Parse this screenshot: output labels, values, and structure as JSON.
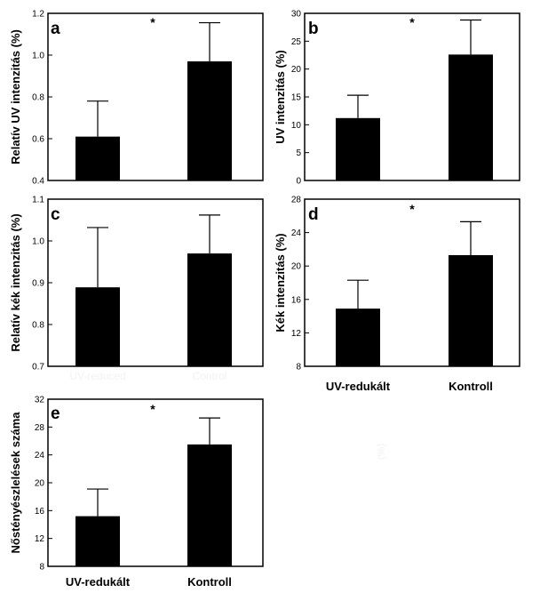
{
  "chart_data": [
    {
      "type": "bar",
      "panel_label": "a",
      "ylabel": "Relatív UV intenzitás (%)",
      "significance": "*",
      "categories": [
        "UV-reduced",
        "Control"
      ],
      "category_labels_visible": false,
      "values": [
        0.61,
        0.97
      ],
      "error_upper": [
        0.78,
        1.155
      ],
      "ylim": [
        0.4,
        1.2
      ],
      "yticks": [
        "0.4",
        "0.6",
        "0.8",
        "1.0",
        "1.2"
      ]
    },
    {
      "type": "bar",
      "panel_label": "b",
      "ylabel": "UV intenzitás  (%)",
      "significance": "*",
      "categories": [
        "UV-reduced",
        "Control"
      ],
      "category_labels_visible": false,
      "values": [
        11.2,
        22.6
      ],
      "error_upper": [
        15.3,
        28.8
      ],
      "ylim": [
        0,
        30
      ],
      "yticks": [
        "0",
        "5",
        "10",
        "15",
        "20",
        "25",
        "30"
      ]
    },
    {
      "type": "bar",
      "panel_label": "c",
      "ylabel": "Relatív kék intenzitás (%)",
      "significance": "",
      "categories": [
        "UV-reduced",
        "Control"
      ],
      "category_labels_visible": true,
      "category_labels_faint": true,
      "values": [
        0.889,
        0.97
      ],
      "error_upper": [
        1.032,
        1.062
      ],
      "ylim": [
        0.7,
        1.1
      ],
      "yticks": [
        "0.7",
        "0.8",
        "0.9",
        "1.0",
        "1.1"
      ]
    },
    {
      "type": "bar",
      "panel_label": "d",
      "ylabel": "Kék intenzitás  (%)",
      "significance": "*",
      "categories": [
        "UV-redukált",
        "Kontroll"
      ],
      "category_labels_visible": true,
      "values": [
        14.9,
        21.3
      ],
      "error_upper": [
        18.3,
        25.3
      ],
      "ylim": [
        8,
        28
      ],
      "yticks": [
        "8",
        "12",
        "16",
        "20",
        "24",
        "28"
      ]
    },
    {
      "type": "bar",
      "panel_label": "e",
      "ylabel": "Nőstényészlelések száma",
      "significance": "*",
      "categories": [
        "UV-redukált",
        "Kontroll"
      ],
      "category_labels_visible": true,
      "values": [
        15.2,
        25.5
      ],
      "error_upper": [
        19.1,
        29.3
      ],
      "ylim": [
        8,
        32
      ],
      "yticks": [
        "8",
        "12",
        "16",
        "20",
        "24",
        "28",
        "32"
      ]
    }
  ],
  "stray_text": "(%)",
  "colors": {
    "bar": "#000000",
    "axis": "#000000",
    "faint_text": "#f2f2f2"
  }
}
